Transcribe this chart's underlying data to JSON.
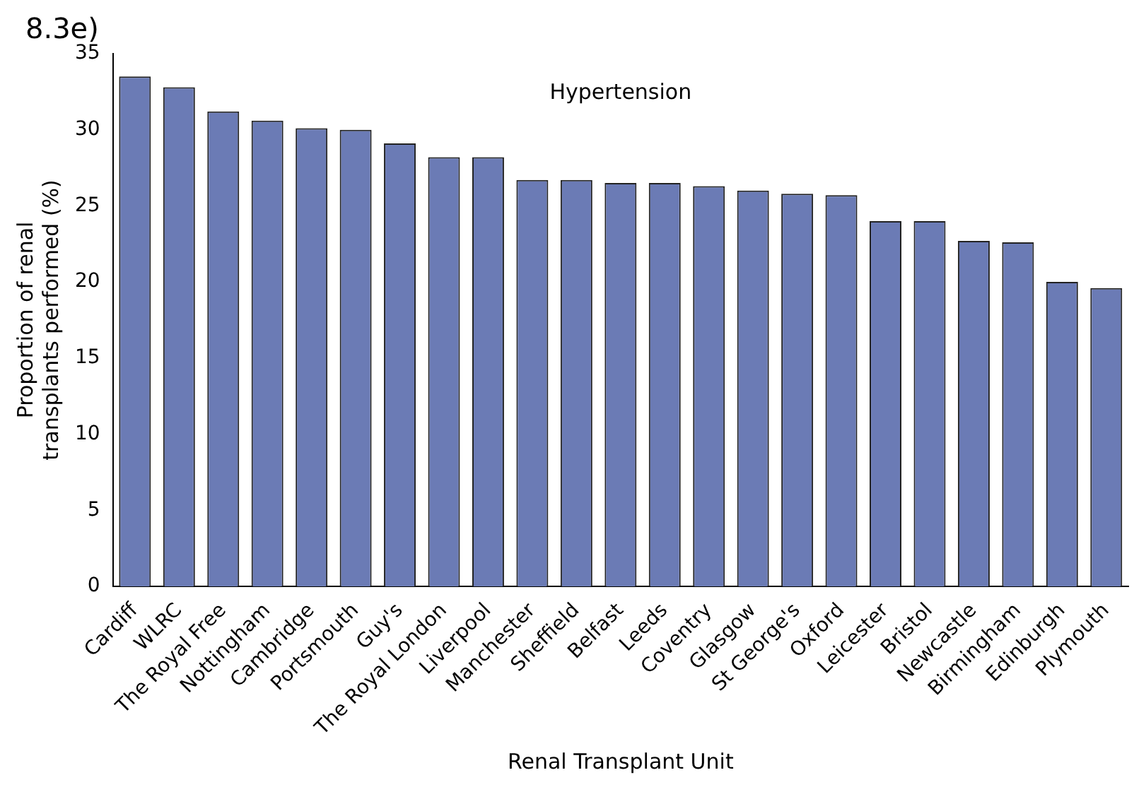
{
  "chart_data": {
    "type": "bar",
    "title": "Hypertension",
    "xlabel": "Renal Transplant Unit",
    "ylabel": "Proportion of renal transplants performed (%)",
    "annotations": [
      "8.3e)"
    ],
    "categories": [
      "Cardiff",
      "WLRC",
      "The Royal Free",
      "Nottingham",
      "Cambridge",
      "Portsmouth",
      "Guy's",
      "The Royal London",
      "Liverpool",
      "Manchester",
      "Sheffield",
      "Belfast",
      "Leeds",
      "Coventry",
      "Glasgow",
      "St George's",
      "Oxford",
      "Leicester",
      "Bristol",
      "Newcastle",
      "Birmingham",
      "Edinburgh",
      "Plymouth"
    ],
    "values": [
      33.5,
      32.8,
      31.2,
      30.6,
      30.1,
      30.0,
      29.1,
      28.2,
      28.2,
      26.7,
      26.7,
      26.5,
      26.5,
      26.3,
      26.0,
      25.8,
      25.7,
      24.0,
      24.0,
      22.7,
      22.6,
      20.0,
      19.6
    ],
    "color": "#6b7bb5",
    "ylim": [
      0,
      35
    ],
    "yticks": [
      0,
      5,
      10,
      15,
      20,
      25,
      30,
      35
    ],
    "grid": false,
    "legend": false
  }
}
